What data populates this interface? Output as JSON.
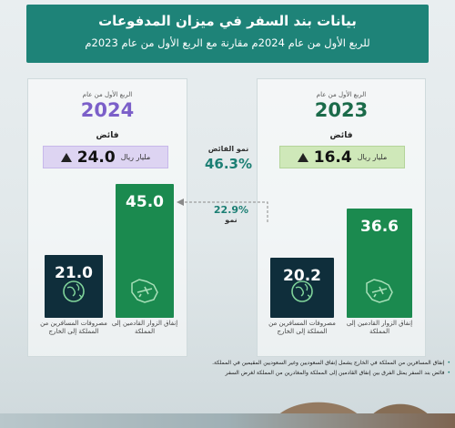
{
  "header": {
    "title": "بيانات بند السفر في ميزان المدفوعات",
    "subtitle": "للربع الأول من عام 2024م مقارنة مع الربع الأول من عام 2023م"
  },
  "panel_2023": {
    "period_label": "الربع الأول من عام",
    "year": "2023",
    "status_label": "فائض",
    "surplus_value": "16.4",
    "surplus_unit": "مليار ريال",
    "bar_inbound_label": "إنفاق الزوار القادمين إلى المملكة",
    "bar_outbound_label": "مصروفات المسافرين من المملكة إلى الخارج"
  },
  "panel_2024": {
    "period_label": "الربع الأول من عام",
    "year": "2024",
    "status_label": "فائض",
    "surplus_value": "24.0",
    "surplus_unit": "مليار ريال",
    "bar_inbound_label": "إنفاق الزوار القادمين إلى المملكة",
    "bar_outbound_label": "مصروفات المسافرين من المملكة إلى الخارج"
  },
  "middle": {
    "surplus_growth_label": "نمو الفائض",
    "surplus_growth_value": "46.3%",
    "inbound_growth_value": "22.9%",
    "inbound_growth_label": "نمو"
  },
  "footnotes": [
    "إنفاق المسافرين من المملكة في الخارج يشمل إنفاق السعوديين وغير السعوديين المقيمين في المملكة.",
    "فائض بند السفر يمثل الفرق بين إنفاق القادمين إلى المملكة والمغادرين من المملكة لغرض السفر"
  ],
  "colors": {
    "header": "#1e8378",
    "year_2023": "#1b6b4a",
    "year_2024": "#7b5fc9",
    "inbound_bar": "#1b8a4f",
    "outbound_bar": "#0f2e3b"
  },
  "chart_data": [
    {
      "type": "bar",
      "title": "2023",
      "categories": [
        "إنفاق الزوار القادمين إلى المملكة",
        "مصروفات المسافرين من المملكة إلى الخارج"
      ],
      "values": [
        36.6,
        20.2
      ],
      "surplus": 16.4
    },
    {
      "type": "bar",
      "title": "2024",
      "categories": [
        "إنفاق الزوار القادمين إلى المملكة",
        "مصروفات المسافرين من المملكة إلى الخارج"
      ],
      "values": [
        45.0,
        21.0
      ],
      "surplus": 24.0
    }
  ]
}
